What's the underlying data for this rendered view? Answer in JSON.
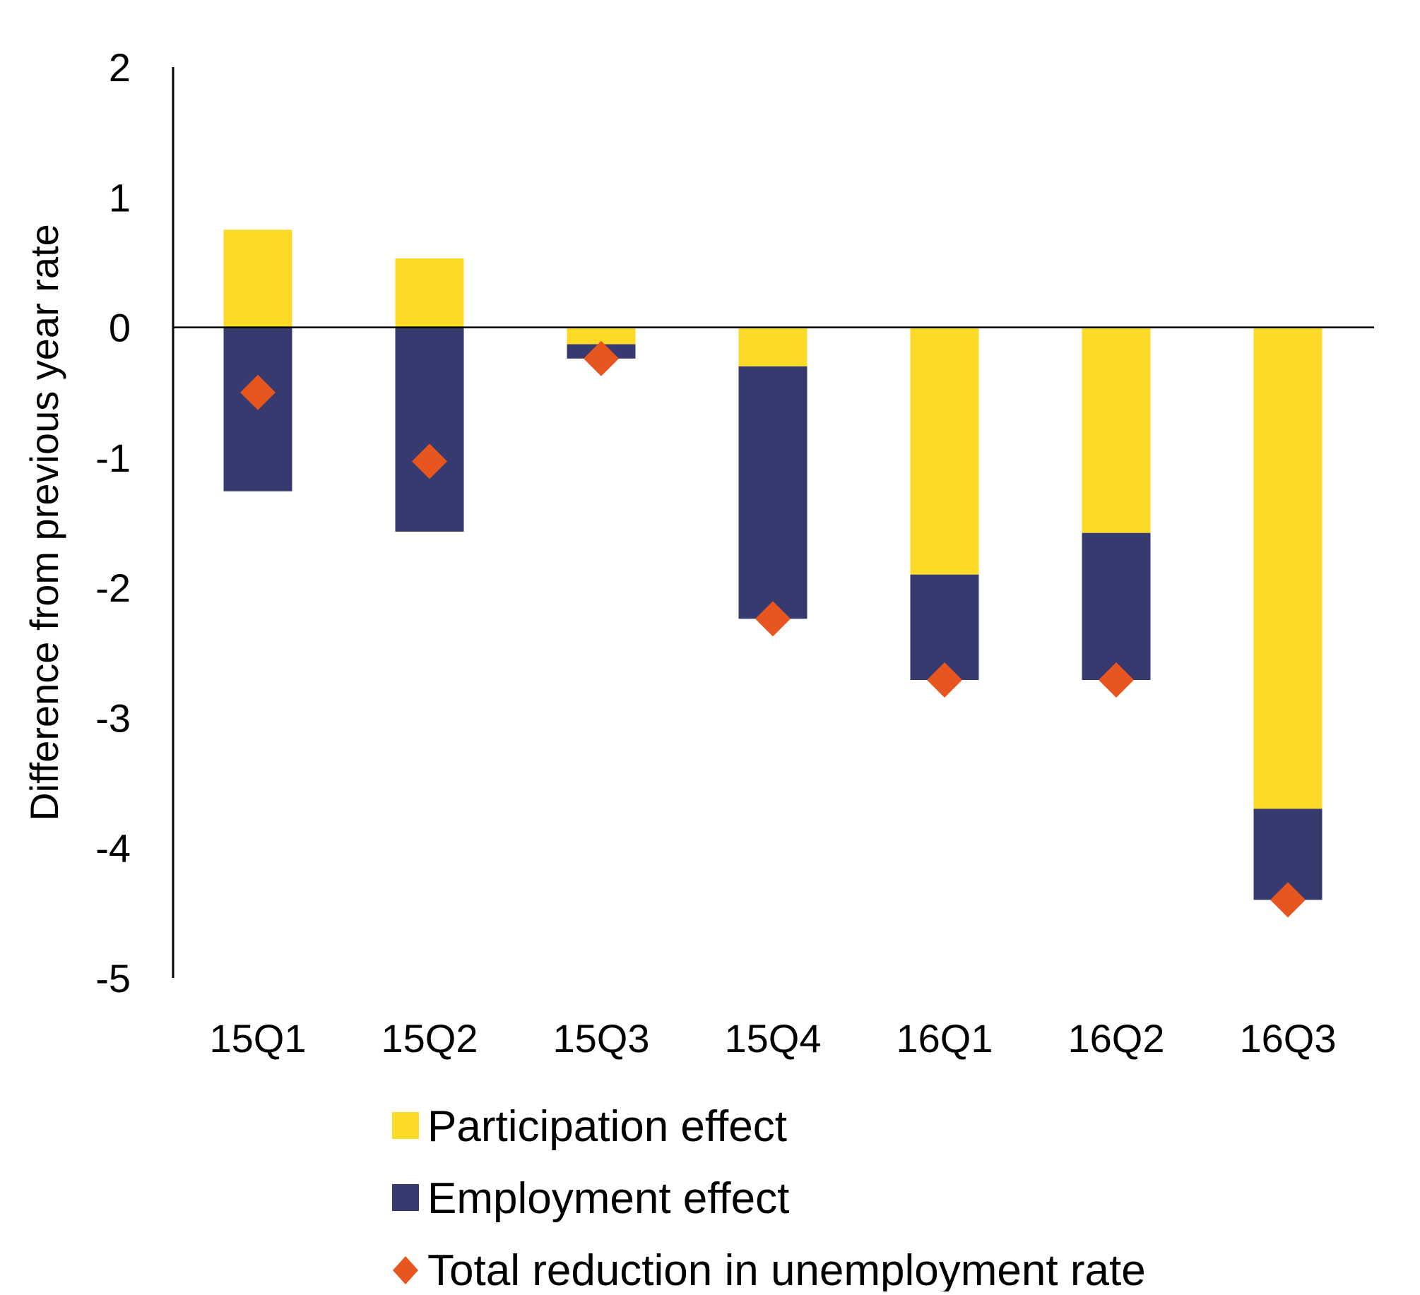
{
  "chart_data": {
    "type": "bar",
    "stacked": true,
    "categories": [
      "15Q1",
      "15Q2",
      "15Q3",
      "15Q4",
      "16Q1",
      "16Q2",
      "16Q3"
    ],
    "series": [
      {
        "name": "Participation effect",
        "kind": "bar",
        "color": "#FDD928",
        "values": [
          0.75,
          0.53,
          -0.13,
          -0.3,
          -1.9,
          -1.58,
          -3.7
        ]
      },
      {
        "name": "Employment effect",
        "kind": "bar",
        "color": "#373A6E",
        "values": [
          -1.26,
          -1.57,
          -0.11,
          -1.94,
          -0.81,
          -1.13,
          -0.7
        ]
      },
      {
        "name": "Total reduction in unemployment rate",
        "kind": "marker",
        "marker": "diamond",
        "color": "#E8561F",
        "values": [
          -0.5,
          -1.03,
          -0.24,
          -2.24,
          -2.71,
          -2.71,
          -4.4
        ]
      }
    ],
    "title": "",
    "xlabel": "",
    "ylabel": "Difference from previous year rate",
    "ylim": [
      -5,
      2
    ],
    "yticks": [
      2,
      1,
      0,
      -1,
      -2,
      -3,
      -4,
      -5
    ],
    "grid": false,
    "legend_position": "bottom"
  }
}
